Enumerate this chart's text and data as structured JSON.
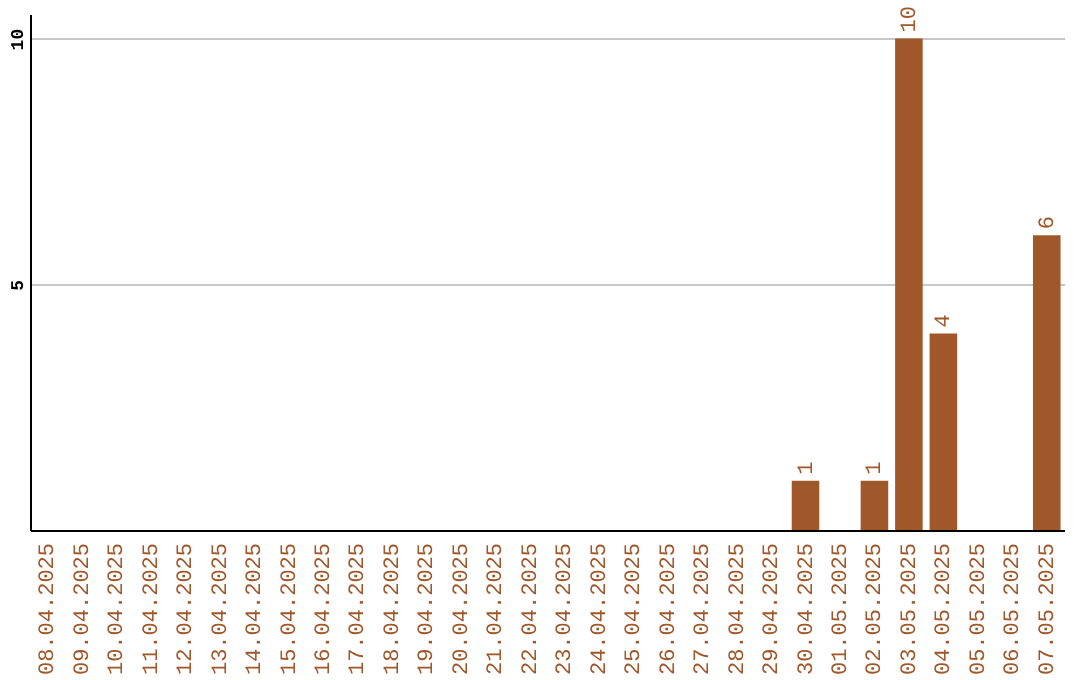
{
  "chart_data": {
    "type": "bar",
    "categories": [
      "08.04.2025",
      "09.04.2025",
      "10.04.2025",
      "11.04.2025",
      "12.04.2025",
      "13.04.2025",
      "14.04.2025",
      "15.04.2025",
      "16.04.2025",
      "17.04.2025",
      "18.04.2025",
      "19.04.2025",
      "20.04.2025",
      "21.04.2025",
      "22.04.2025",
      "23.04.2025",
      "24.04.2025",
      "25.04.2025",
      "26.04.2025",
      "27.04.2025",
      "28.04.2025",
      "29.04.2025",
      "30.04.2025",
      "01.05.2025",
      "02.05.2025",
      "03.05.2025",
      "04.05.2025",
      "05.05.2025",
      "06.05.2025",
      "07.05.2025"
    ],
    "values": [
      0,
      0,
      0,
      0,
      0,
      0,
      0,
      0,
      0,
      0,
      0,
      0,
      0,
      0,
      0,
      0,
      0,
      0,
      0,
      0,
      0,
      0,
      1,
      0,
      1,
      10,
      4,
      0,
      0,
      6
    ],
    "value_labels": [
      null,
      null,
      null,
      null,
      null,
      null,
      null,
      null,
      null,
      null,
      null,
      null,
      null,
      null,
      null,
      null,
      null,
      null,
      null,
      null,
      null,
      null,
      "1",
      null,
      "1",
      "10",
      "4",
      null,
      null,
      "6"
    ],
    "color": "#a0572a",
    "ylim": [
      0,
      10.5
    ],
    "yticks": [
      5,
      10
    ],
    "grid": "y"
  }
}
